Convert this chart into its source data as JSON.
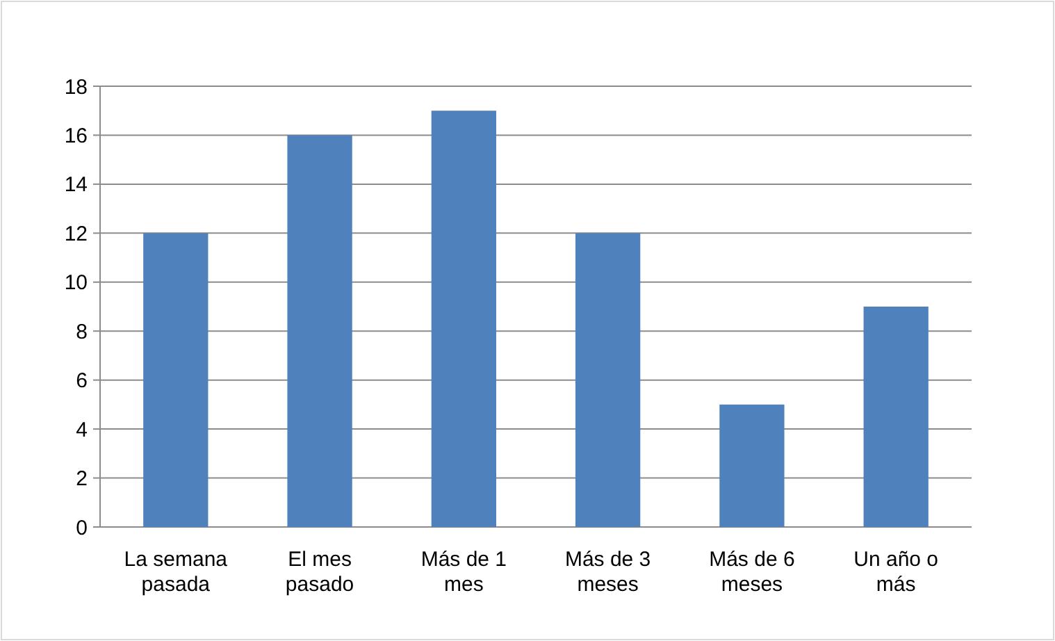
{
  "chart_data": {
    "type": "bar",
    "categories": [
      "La semana pasada",
      "El mes pasado",
      "Más de 1 mes",
      "Más de 3 meses",
      "Más de 6 meses",
      "Un año o más"
    ],
    "values": [
      12,
      16,
      17,
      12,
      5,
      9
    ],
    "color": "#4f81bd",
    "ylim": [
      0,
      18
    ],
    "yticks": [
      0,
      2,
      4,
      6,
      8,
      10,
      12,
      14,
      16,
      18
    ],
    "grid": "y"
  }
}
